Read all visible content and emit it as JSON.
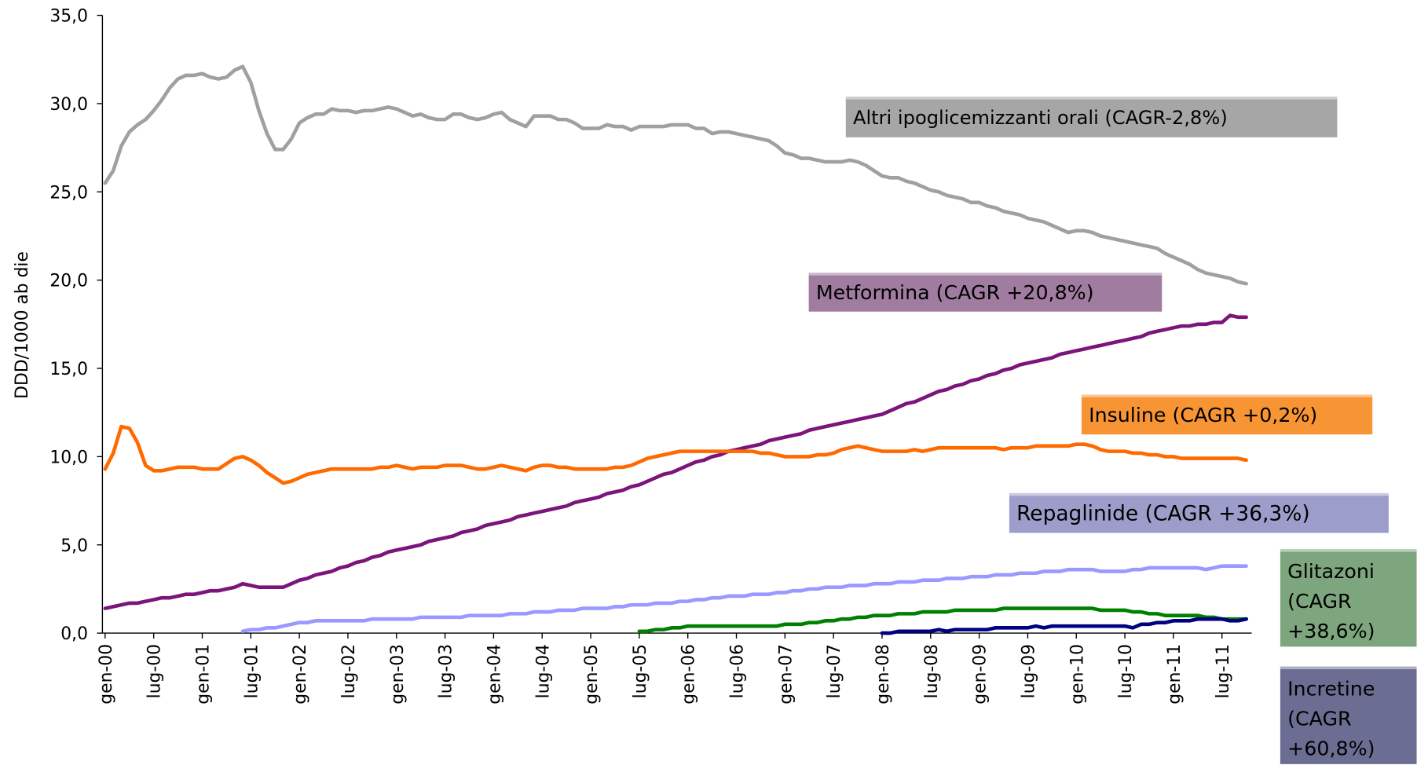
{
  "chart_data": {
    "type": "line",
    "ylabel": "DDD/1000 ab die",
    "ylim": [
      0,
      35
    ],
    "yticks": [
      {
        "value": 0,
        "label": "0,0"
      },
      {
        "value": 5,
        "label": "5,0"
      },
      {
        "value": 10,
        "label": "10,0"
      },
      {
        "value": 15,
        "label": "15,0"
      },
      {
        "value": 20,
        "label": "20,0"
      },
      {
        "value": 25,
        "label": "25,0"
      },
      {
        "value": 30,
        "label": "30,0"
      },
      {
        "value": 35,
        "label": "35,0"
      }
    ],
    "categories": [
      "gen-00",
      null,
      null,
      null,
      null,
      null,
      "lug-00",
      null,
      null,
      null,
      null,
      null,
      "gen-01",
      null,
      null,
      null,
      null,
      null,
      "lug-01",
      null,
      null,
      null,
      null,
      null,
      "gen-02",
      null,
      null,
      null,
      null,
      null,
      "lug-02",
      null,
      null,
      null,
      null,
      null,
      "gen-03",
      null,
      null,
      null,
      null,
      null,
      "lug-03",
      null,
      null,
      null,
      null,
      null,
      "gen-04",
      null,
      null,
      null,
      null,
      null,
      "lug-04",
      null,
      null,
      null,
      null,
      null,
      "gen-05",
      null,
      null,
      null,
      null,
      null,
      "lug-05",
      null,
      null,
      null,
      null,
      null,
      "gen-06",
      null,
      null,
      null,
      null,
      null,
      "lug-06",
      null,
      null,
      null,
      null,
      null,
      "gen-07",
      null,
      null,
      null,
      null,
      null,
      "lug-07",
      null,
      null,
      null,
      null,
      null,
      "gen-08",
      null,
      null,
      null,
      null,
      null,
      "lug-08",
      null,
      null,
      null,
      null,
      null,
      "gen-09",
      null,
      null,
      null,
      null,
      null,
      "lug-09",
      null,
      null,
      null,
      null,
      null,
      "gen-10",
      null,
      null,
      null,
      null,
      null,
      "lug-10",
      null,
      null,
      null,
      null,
      null,
      "gen-11",
      null,
      null,
      null,
      null,
      null,
      "lug-11",
      null,
      null,
      null
    ],
    "series": [
      {
        "name": "Altri ipoglicemizzanti orali (CAGR-2,8%)",
        "color": "#a0a0a0",
        "label_color": "#a6a6a6",
        "values": [
          25.5,
          26.2,
          27.6,
          28.4,
          28.8,
          29.1,
          29.6,
          30.2,
          30.9,
          31.4,
          31.6,
          31.6,
          31.7,
          31.5,
          31.4,
          31.5,
          31.9,
          32.1,
          31.2,
          29.6,
          28.3,
          27.4,
          27.4,
          28.0,
          28.9,
          29.2,
          29.4,
          29.4,
          29.7,
          29.6,
          29.6,
          29.5,
          29.6,
          29.6,
          29.7,
          29.8,
          29.7,
          29.5,
          29.3,
          29.4,
          29.2,
          29.1,
          29.1,
          29.4,
          29.4,
          29.2,
          29.1,
          29.2,
          29.4,
          29.5,
          29.1,
          28.9,
          28.7,
          29.3,
          29.3,
          29.3,
          29.1,
          29.1,
          28.9,
          28.6,
          28.6,
          28.6,
          28.8,
          28.7,
          28.7,
          28.5,
          28.7,
          28.7,
          28.7,
          28.7,
          28.8,
          28.8,
          28.8,
          28.6,
          28.6,
          28.3,
          28.4,
          28.4,
          28.3,
          28.2,
          28.1,
          28.0,
          27.9,
          27.6,
          27.2,
          27.1,
          26.9,
          26.9,
          26.8,
          26.7,
          26.7,
          26.7,
          26.8,
          26.7,
          26.5,
          26.2,
          25.9,
          25.8,
          25.8,
          25.6,
          25.5,
          25.3,
          25.1,
          25.0,
          24.8,
          24.7,
          24.6,
          24.4,
          24.4,
          24.2,
          24.1,
          23.9,
          23.8,
          23.7,
          23.5,
          23.4,
          23.3,
          23.1,
          22.9,
          22.7,
          22.8,
          22.8,
          22.7,
          22.5,
          22.4,
          22.3,
          22.2,
          22.1,
          22.0,
          21.9,
          21.8,
          21.5,
          21.3,
          21.1,
          20.9,
          20.6,
          20.4,
          20.3,
          20.2,
          20.1,
          19.9,
          19.8
        ]
      },
      {
        "name": "Metformina (CAGR +20,8%)",
        "color": "#7b157b",
        "label_color": "#a07ca0",
        "values": [
          1.4,
          1.5,
          1.6,
          1.7,
          1.7,
          1.8,
          1.9,
          2.0,
          2.0,
          2.1,
          2.2,
          2.2,
          2.3,
          2.4,
          2.4,
          2.5,
          2.6,
          2.8,
          2.7,
          2.6,
          2.6,
          2.6,
          2.6,
          2.8,
          3.0,
          3.1,
          3.3,
          3.4,
          3.5,
          3.7,
          3.8,
          4.0,
          4.1,
          4.3,
          4.4,
          4.6,
          4.7,
          4.8,
          4.9,
          5.0,
          5.2,
          5.3,
          5.4,
          5.5,
          5.7,
          5.8,
          5.9,
          6.1,
          6.2,
          6.3,
          6.4,
          6.6,
          6.7,
          6.8,
          6.9,
          7.0,
          7.1,
          7.2,
          7.4,
          7.5,
          7.6,
          7.7,
          7.9,
          8.0,
          8.1,
          8.3,
          8.4,
          8.6,
          8.8,
          9.0,
          9.1,
          9.3,
          9.5,
          9.7,
          9.8,
          10.0,
          10.1,
          10.3,
          10.4,
          10.5,
          10.6,
          10.7,
          10.9,
          11.0,
          11.1,
          11.2,
          11.3,
          11.5,
          11.6,
          11.7,
          11.8,
          11.9,
          12.0,
          12.1,
          12.2,
          12.3,
          12.4,
          12.6,
          12.8,
          13.0,
          13.1,
          13.3,
          13.5,
          13.7,
          13.8,
          14.0,
          14.1,
          14.3,
          14.4,
          14.6,
          14.7,
          14.9,
          15.0,
          15.2,
          15.3,
          15.4,
          15.5,
          15.6,
          15.8,
          15.9,
          16.0,
          16.1,
          16.2,
          16.3,
          16.4,
          16.5,
          16.6,
          16.7,
          16.8,
          17.0,
          17.1,
          17.2,
          17.3,
          17.4,
          17.4,
          17.5,
          17.5,
          17.6,
          17.6,
          18.0,
          17.9,
          17.9
        ]
      },
      {
        "name": "Insuline (CAGR +0,2%)",
        "color": "#ff6a00",
        "label_color": "#f79433",
        "values": [
          9.3,
          10.2,
          11.7,
          11.6,
          10.8,
          9.5,
          9.2,
          9.2,
          9.3,
          9.4,
          9.4,
          9.4,
          9.3,
          9.3,
          9.3,
          9.6,
          9.9,
          10.0,
          9.8,
          9.5,
          9.1,
          8.8,
          8.5,
          8.6,
          8.8,
          9.0,
          9.1,
          9.2,
          9.3,
          9.3,
          9.3,
          9.3,
          9.3,
          9.3,
          9.4,
          9.4,
          9.5,
          9.4,
          9.3,
          9.4,
          9.4,
          9.4,
          9.5,
          9.5,
          9.5,
          9.4,
          9.3,
          9.3,
          9.4,
          9.5,
          9.4,
          9.3,
          9.2,
          9.4,
          9.5,
          9.5,
          9.4,
          9.4,
          9.3,
          9.3,
          9.3,
          9.3,
          9.3,
          9.4,
          9.4,
          9.5,
          9.7,
          9.9,
          10.0,
          10.1,
          10.2,
          10.3,
          10.3,
          10.3,
          10.3,
          10.3,
          10.3,
          10.3,
          10.3,
          10.3,
          10.3,
          10.2,
          10.2,
          10.1,
          10.0,
          10.0,
          10.0,
          10.0,
          10.1,
          10.1,
          10.2,
          10.4,
          10.5,
          10.6,
          10.5,
          10.4,
          10.3,
          10.3,
          10.3,
          10.3,
          10.4,
          10.3,
          10.4,
          10.5,
          10.5,
          10.5,
          10.5,
          10.5,
          10.5,
          10.5,
          10.5,
          10.4,
          10.5,
          10.5,
          10.5,
          10.6,
          10.6,
          10.6,
          10.6,
          10.6,
          10.7,
          10.7,
          10.6,
          10.4,
          10.3,
          10.3,
          10.3,
          10.2,
          10.2,
          10.1,
          10.1,
          10.0,
          10.0,
          9.9,
          9.9,
          9.9,
          9.9,
          9.9,
          9.9,
          9.9,
          9.9,
          9.8
        ]
      },
      {
        "name": "Repaglinide (CAGR +36,3%)",
        "color": "#9999ff",
        "label_color": "#9d9dcb",
        "values": [
          null,
          null,
          null,
          null,
          null,
          null,
          null,
          null,
          null,
          null,
          null,
          null,
          null,
          null,
          null,
          null,
          null,
          0.1,
          0.2,
          0.2,
          0.3,
          0.3,
          0.4,
          0.5,
          0.6,
          0.6,
          0.7,
          0.7,
          0.7,
          0.7,
          0.7,
          0.7,
          0.7,
          0.8,
          0.8,
          0.8,
          0.8,
          0.8,
          0.8,
          0.9,
          0.9,
          0.9,
          0.9,
          0.9,
          0.9,
          1.0,
          1.0,
          1.0,
          1.0,
          1.0,
          1.1,
          1.1,
          1.1,
          1.2,
          1.2,
          1.2,
          1.3,
          1.3,
          1.3,
          1.4,
          1.4,
          1.4,
          1.4,
          1.5,
          1.5,
          1.6,
          1.6,
          1.6,
          1.7,
          1.7,
          1.7,
          1.8,
          1.8,
          1.9,
          1.9,
          2.0,
          2.0,
          2.1,
          2.1,
          2.1,
          2.2,
          2.2,
          2.2,
          2.3,
          2.3,
          2.4,
          2.4,
          2.5,
          2.5,
          2.6,
          2.6,
          2.6,
          2.7,
          2.7,
          2.7,
          2.8,
          2.8,
          2.8,
          2.9,
          2.9,
          2.9,
          3.0,
          3.0,
          3.0,
          3.1,
          3.1,
          3.1,
          3.2,
          3.2,
          3.2,
          3.3,
          3.3,
          3.3,
          3.4,
          3.4,
          3.4,
          3.5,
          3.5,
          3.5,
          3.6,
          3.6,
          3.6,
          3.6,
          3.5,
          3.5,
          3.5,
          3.5,
          3.6,
          3.6,
          3.7,
          3.7,
          3.7,
          3.7,
          3.7,
          3.7,
          3.7,
          3.6,
          3.7,
          3.8,
          3.8,
          3.8,
          3.8
        ]
      },
      {
        "name": "Glitazoni (CAGR +38,6%)",
        "color": "#008000",
        "label_color": "#7ea67e",
        "values": [
          null,
          null,
          null,
          null,
          null,
          null,
          null,
          null,
          null,
          null,
          null,
          null,
          null,
          null,
          null,
          null,
          null,
          null,
          null,
          null,
          null,
          null,
          null,
          null,
          null,
          null,
          null,
          null,
          null,
          null,
          null,
          null,
          null,
          null,
          null,
          null,
          null,
          null,
          null,
          null,
          null,
          null,
          null,
          null,
          null,
          null,
          null,
          null,
          null,
          null,
          null,
          null,
          null,
          null,
          null,
          null,
          null,
          null,
          null,
          null,
          null,
          null,
          null,
          null,
          null,
          null,
          0.1,
          0.1,
          0.2,
          0.2,
          0.3,
          0.3,
          0.4,
          0.4,
          0.4,
          0.4,
          0.4,
          0.4,
          0.4,
          0.4,
          0.4,
          0.4,
          0.4,
          0.4,
          0.5,
          0.5,
          0.5,
          0.6,
          0.6,
          0.7,
          0.7,
          0.8,
          0.8,
          0.9,
          0.9,
          1.0,
          1.0,
          1.0,
          1.1,
          1.1,
          1.1,
          1.2,
          1.2,
          1.2,
          1.2,
          1.3,
          1.3,
          1.3,
          1.3,
          1.3,
          1.3,
          1.4,
          1.4,
          1.4,
          1.4,
          1.4,
          1.4,
          1.4,
          1.4,
          1.4,
          1.4,
          1.4,
          1.4,
          1.3,
          1.3,
          1.3,
          1.3,
          1.2,
          1.2,
          1.1,
          1.1,
          1.0,
          1.0,
          1.0,
          1.0,
          1.0,
          0.9,
          0.9,
          0.8,
          0.8,
          0.8,
          0.8
        ]
      },
      {
        "name": "Incretine (CAGR +60,8%)",
        "color": "#000080",
        "label_color": "#6c6d92",
        "values": [
          null,
          null,
          null,
          null,
          null,
          null,
          null,
          null,
          null,
          null,
          null,
          null,
          null,
          null,
          null,
          null,
          null,
          null,
          null,
          null,
          null,
          null,
          null,
          null,
          null,
          null,
          null,
          null,
          null,
          null,
          null,
          null,
          null,
          null,
          null,
          null,
          null,
          null,
          null,
          null,
          null,
          null,
          null,
          null,
          null,
          null,
          null,
          null,
          null,
          null,
          null,
          null,
          null,
          null,
          null,
          null,
          null,
          null,
          null,
          null,
          null,
          null,
          null,
          null,
          null,
          null,
          null,
          null,
          null,
          null,
          null,
          null,
          null,
          null,
          null,
          null,
          null,
          null,
          null,
          null,
          null,
          null,
          null,
          null,
          null,
          null,
          null,
          null,
          null,
          null,
          null,
          null,
          null,
          null,
          null,
          null,
          0,
          0,
          0.1,
          0.1,
          0.1,
          0.1,
          0.1,
          0.2,
          0.1,
          0.2,
          0.2,
          0.2,
          0.2,
          0.2,
          0.3,
          0.3,
          0.3,
          0.3,
          0.3,
          0.4,
          0.3,
          0.4,
          0.4,
          0.4,
          0.4,
          0.4,
          0.4,
          0.4,
          0.4,
          0.4,
          0.4,
          0.3,
          0.5,
          0.5,
          0.6,
          0.6,
          0.7,
          0.7,
          0.7,
          0.8,
          0.8,
          0.8,
          0.8,
          0.7,
          0.7,
          0.8
        ]
      }
    ]
  }
}
